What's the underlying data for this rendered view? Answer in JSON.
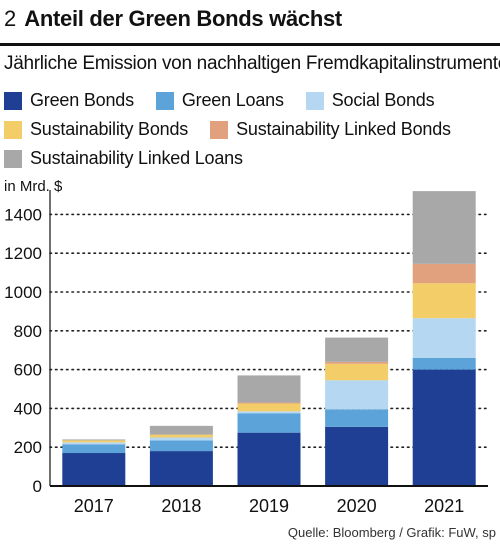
{
  "header": {
    "number": "2",
    "title": "Anteil der Green Bonds wächst"
  },
  "subtitle": "Jährliche Emission von nachhaltigen Fremdkapitalinstrumenten",
  "legend_rows": [
    [
      {
        "label": "Green Bonds",
        "color": "#1f3f94"
      },
      {
        "label": "Green Loans",
        "color": "#5ca3da"
      },
      {
        "label": "Social Bonds",
        "color": "#b5d7f1"
      }
    ],
    [
      {
        "label": "Sustainability Bonds",
        "color": "#f3cd67"
      },
      {
        "label": "Sustainability Linked Bonds",
        "color": "#e1a07e"
      }
    ],
    [
      {
        "label": "Sustainability Linked Loans",
        "color": "#a8a8a8"
      }
    ]
  ],
  "chart_data": {
    "type": "bar",
    "stacked": true,
    "ylabel": "in Mrd. $",
    "ylim": [
      0,
      1500
    ],
    "yticks": [
      0,
      200,
      400,
      600,
      800,
      1000,
      1200,
      1400
    ],
    "grid": true,
    "legend_position": "top",
    "categories": [
      "2017",
      "2018",
      "2019",
      "2020",
      "2021"
    ],
    "series": [
      {
        "name": "Green Bonds",
        "color": "#1f3f94",
        "values": [
          170,
          180,
          275,
          305,
          600
        ]
      },
      {
        "name": "Green Loans",
        "color": "#5ca3da",
        "values": [
          45,
          55,
          100,
          90,
          60
        ]
      },
      {
        "name": "Social Bonds",
        "color": "#b5d7f1",
        "values": [
          10,
          15,
          10,
          150,
          205
        ]
      },
      {
        "name": "Sustainability Bonds",
        "color": "#f3cd67",
        "values": [
          10,
          15,
          40,
          85,
          180
        ]
      },
      {
        "name": "Sustainability Linked Bonds",
        "color": "#e1a07e",
        "values": [
          0,
          0,
          5,
          10,
          100
        ]
      },
      {
        "name": "Sustainability Linked Loans",
        "color": "#a8a8a8",
        "values": [
          5,
          45,
          140,
          125,
          375
        ]
      }
    ]
  },
  "source": "Quelle: Bloomberg / Grafik: FuW, sp"
}
